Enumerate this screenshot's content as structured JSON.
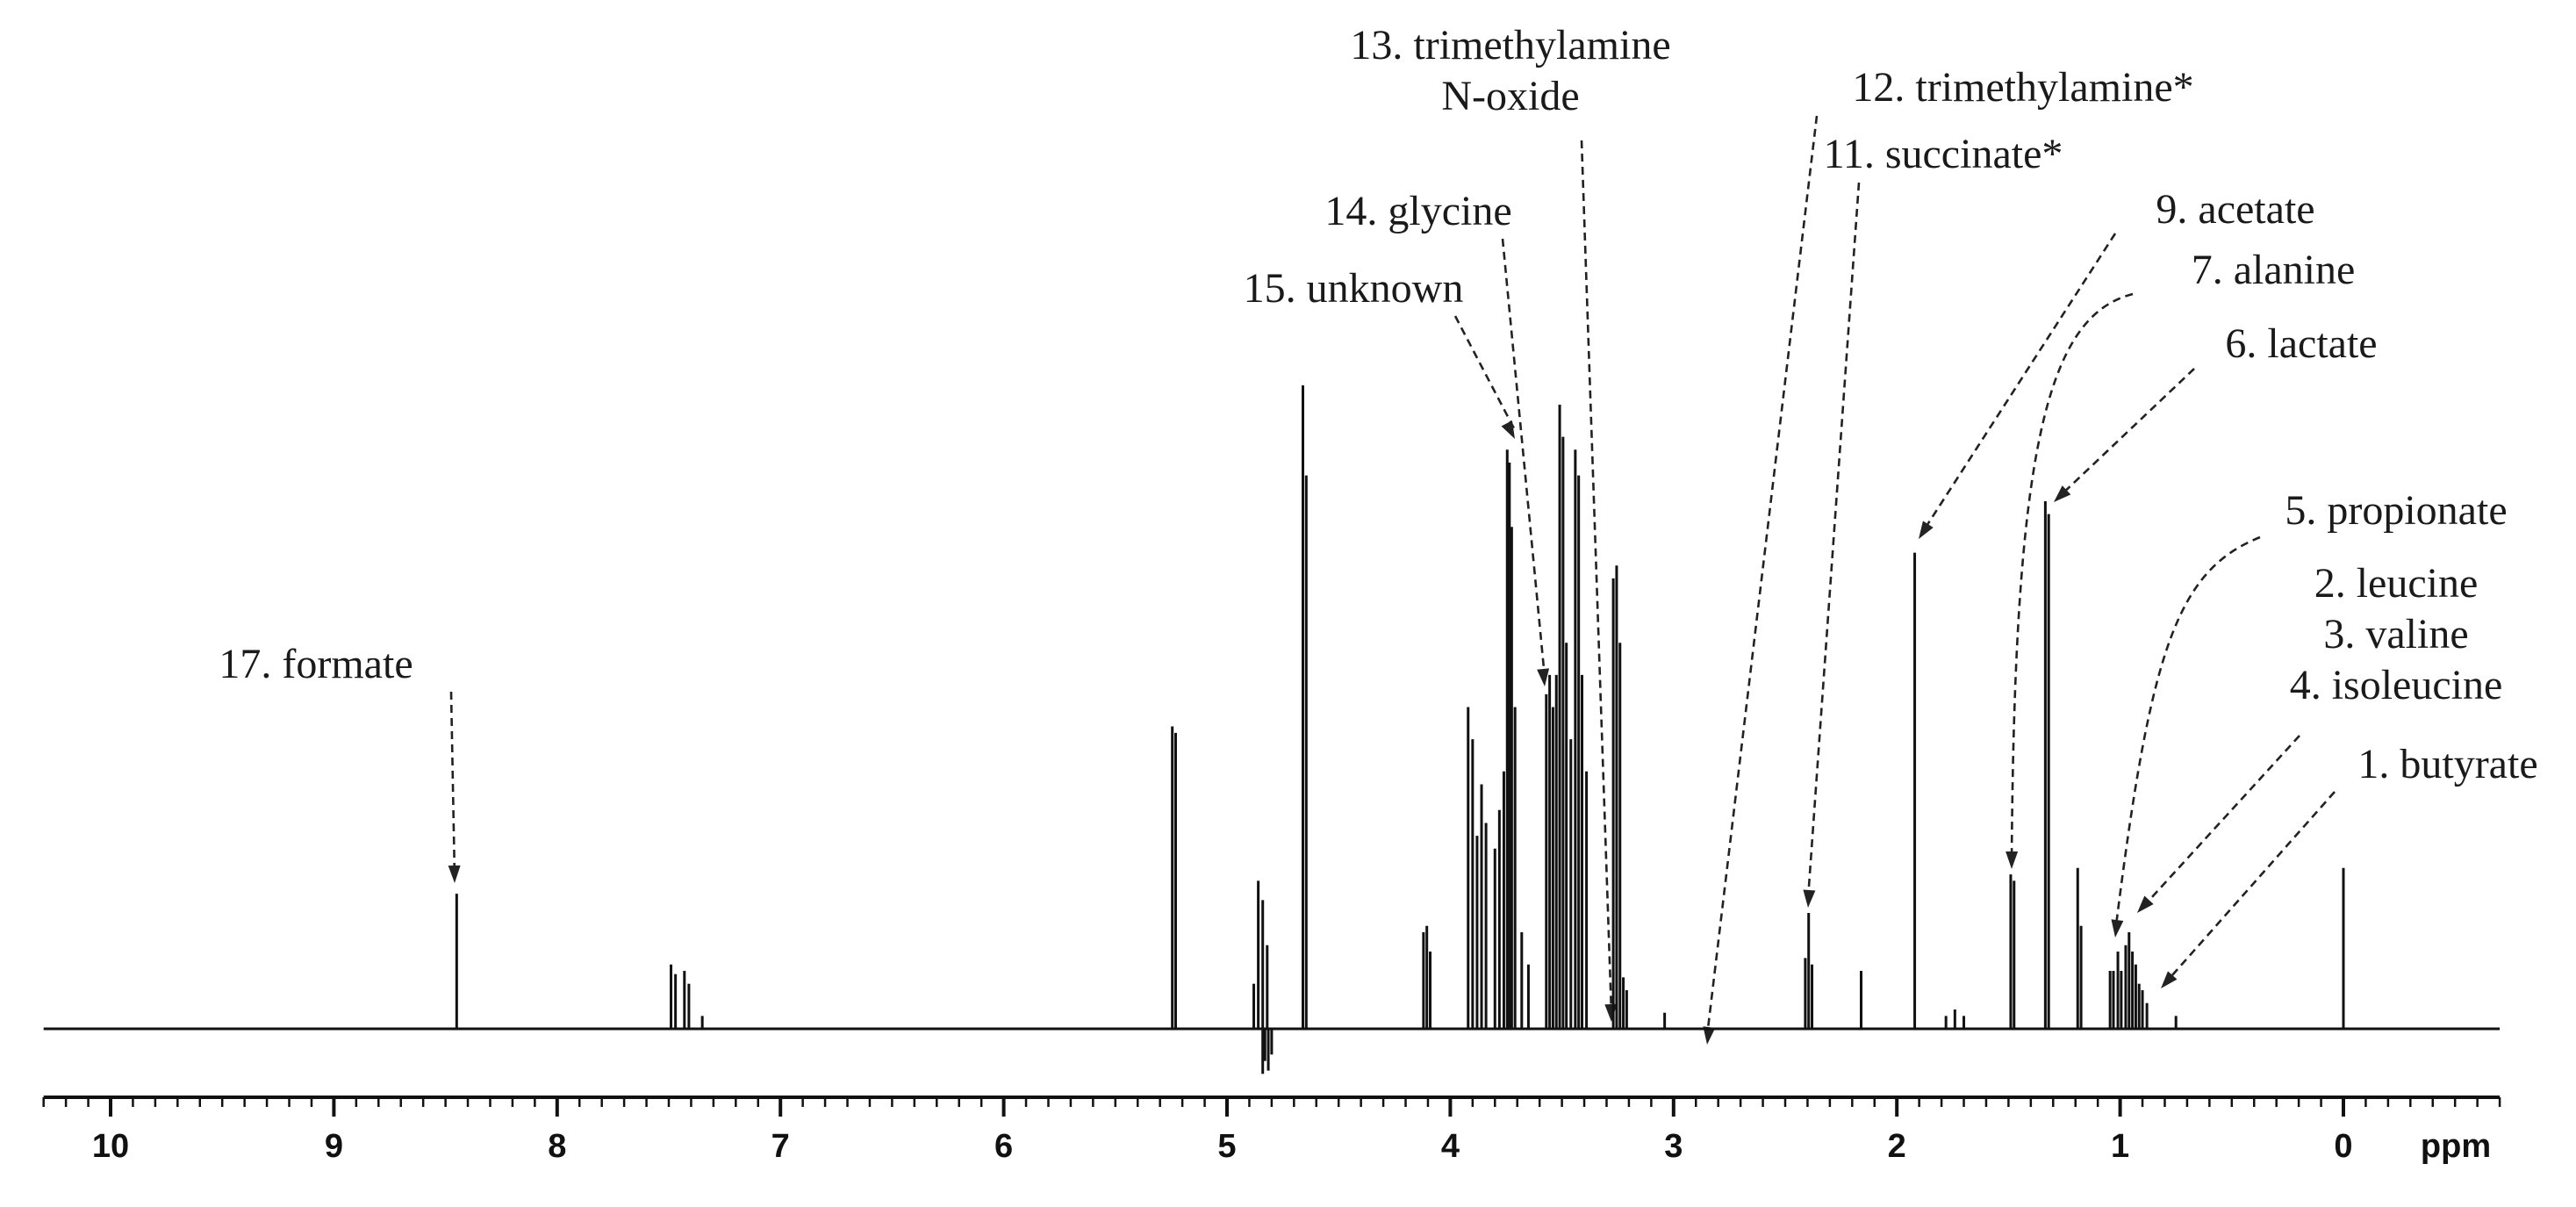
{
  "chart_data": {
    "type": "line",
    "title": "",
    "xlabel": "ppm",
    "ylabel": "",
    "xlim": [
      10.3,
      -0.7
    ],
    "x_reversed": true,
    "grid": false,
    "legend": "none",
    "x_ticks": [
      "10",
      "9",
      "8",
      "7",
      "6",
      "5",
      "4",
      "3",
      "2",
      "1",
      "0"
    ],
    "x_tick_values": [
      10,
      9,
      8,
      7,
      6,
      5,
      4,
      3,
      2,
      1,
      0
    ],
    "colors": {
      "trace": "#111111",
      "annotation": "#1a1a1a",
      "background": "#ffffff"
    },
    "peaks": [
      {
        "x": 8.45,
        "y": 0.21
      },
      {
        "x": 7.49,
        "y": 0.1
      },
      {
        "x": 7.47,
        "y": 0.085
      },
      {
        "x": 7.43,
        "y": 0.09
      },
      {
        "x": 7.41,
        "y": 0.07
      },
      {
        "x": 7.35,
        "y": 0.02
      },
      {
        "x": 5.245,
        "y": 0.47
      },
      {
        "x": 5.23,
        "y": 0.46
      },
      {
        "x": 4.88,
        "y": 0.07
      },
      {
        "x": 4.86,
        "y": 0.23
      },
      {
        "x": 4.84,
        "y": 0.2
      },
      {
        "x": 4.82,
        "y": 0.13
      },
      {
        "x": 4.66,
        "y": 1.0
      },
      {
        "x": 4.645,
        "y": 0.86
      },
      {
        "x": 4.12,
        "y": 0.15
      },
      {
        "x": 4.105,
        "y": 0.16
      },
      {
        "x": 4.09,
        "y": 0.12
      },
      {
        "x": 3.92,
        "y": 0.5
      },
      {
        "x": 3.9,
        "y": 0.45
      },
      {
        "x": 3.88,
        "y": 0.3
      },
      {
        "x": 3.86,
        "y": 0.38
      },
      {
        "x": 3.84,
        "y": 0.32
      },
      {
        "x": 3.8,
        "y": 0.28
      },
      {
        "x": 3.78,
        "y": 0.34
      },
      {
        "x": 3.76,
        "y": 0.4
      },
      {
        "x": 3.745,
        "y": 0.9
      },
      {
        "x": 3.735,
        "y": 0.88
      },
      {
        "x": 3.725,
        "y": 0.78
      },
      {
        "x": 3.71,
        "y": 0.5
      },
      {
        "x": 3.68,
        "y": 0.15
      },
      {
        "x": 3.65,
        "y": 0.1
      },
      {
        "x": 3.57,
        "y": 0.52
      },
      {
        "x": 3.555,
        "y": 0.55
      },
      {
        "x": 3.54,
        "y": 0.5
      },
      {
        "x": 3.525,
        "y": 0.55
      },
      {
        "x": 3.51,
        "y": 0.97
      },
      {
        "x": 3.495,
        "y": 0.92
      },
      {
        "x": 3.48,
        "y": 0.6
      },
      {
        "x": 3.46,
        "y": 0.45
      },
      {
        "x": 3.44,
        "y": 0.9
      },
      {
        "x": 3.425,
        "y": 0.86
      },
      {
        "x": 3.41,
        "y": 0.55
      },
      {
        "x": 3.39,
        "y": 0.4
      },
      {
        "x": 3.27,
        "y": 0.7
      },
      {
        "x": 3.255,
        "y": 0.72
      },
      {
        "x": 3.24,
        "y": 0.6
      },
      {
        "x": 3.225,
        "y": 0.08
      },
      {
        "x": 3.21,
        "y": 0.06
      },
      {
        "x": 3.04,
        "y": 0.025
      },
      {
        "x": 2.41,
        "y": 0.11
      },
      {
        "x": 2.395,
        "y": 0.18
      },
      {
        "x": 2.38,
        "y": 0.1
      },
      {
        "x": 2.16,
        "y": 0.09
      },
      {
        "x": 1.92,
        "y": 0.74
      },
      {
        "x": 1.78,
        "y": 0.02
      },
      {
        "x": 1.74,
        "y": 0.03
      },
      {
        "x": 1.7,
        "y": 0.02
      },
      {
        "x": 1.49,
        "y": 0.24
      },
      {
        "x": 1.475,
        "y": 0.23
      },
      {
        "x": 1.335,
        "y": 0.82
      },
      {
        "x": 1.32,
        "y": 0.8
      },
      {
        "x": 1.19,
        "y": 0.25
      },
      {
        "x": 1.175,
        "y": 0.16
      },
      {
        "x": 1.045,
        "y": 0.09
      },
      {
        "x": 1.03,
        "y": 0.09
      },
      {
        "x": 1.01,
        "y": 0.12
      },
      {
        "x": 0.995,
        "y": 0.09
      },
      {
        "x": 0.975,
        "y": 0.13
      },
      {
        "x": 0.96,
        "y": 0.15
      },
      {
        "x": 0.945,
        "y": 0.12
      },
      {
        "x": 0.93,
        "y": 0.1
      },
      {
        "x": 0.915,
        "y": 0.07
      },
      {
        "x": 0.9,
        "y": 0.06
      },
      {
        "x": 0.88,
        "y": 0.04
      },
      {
        "x": 0.75,
        "y": 0.02
      },
      {
        "x": 0.0,
        "y": 0.25
      }
    ],
    "negative_features": [
      {
        "x": 4.84,
        "y": -0.07
      },
      {
        "x": 4.83,
        "y": -0.05
      },
      {
        "x": 4.815,
        "y": -0.065
      },
      {
        "x": 4.8,
        "y": -0.04
      }
    ],
    "annotations": [
      {
        "lines": [
          "17. formate"
        ],
        "peak_x": 8.45
      },
      {
        "lines": [
          "15. unknown"
        ],
        "peak_x": 3.74
      },
      {
        "lines": [
          "14. glycine"
        ],
        "peak_x": 3.56
      },
      {
        "lines": [
          "13. trimethylamine",
          "N-oxide"
        ],
        "peak_x": 3.27
      },
      {
        "lines": [
          "12. trimethylamine*"
        ],
        "peak_x": 2.89
      },
      {
        "lines": [
          "11. succinate*"
        ],
        "peak_x": 2.41
      },
      {
        "lines": [
          "9. acetate"
        ],
        "peak_x": 1.92
      },
      {
        "lines": [
          "7. alanine"
        ],
        "peak_x": 1.48
      },
      {
        "lines": [
          "6. lactate"
        ],
        "peak_x": 1.33
      },
      {
        "lines": [
          "5. propionate"
        ],
        "peak_x": 1.04
      },
      {
        "lines": [
          "2. leucine",
          "3. valine",
          "4. isoleucine"
        ],
        "peak_x": 0.95
      },
      {
        "lines": [
          "1. butyrate"
        ],
        "peak_x": 0.88
      }
    ]
  }
}
